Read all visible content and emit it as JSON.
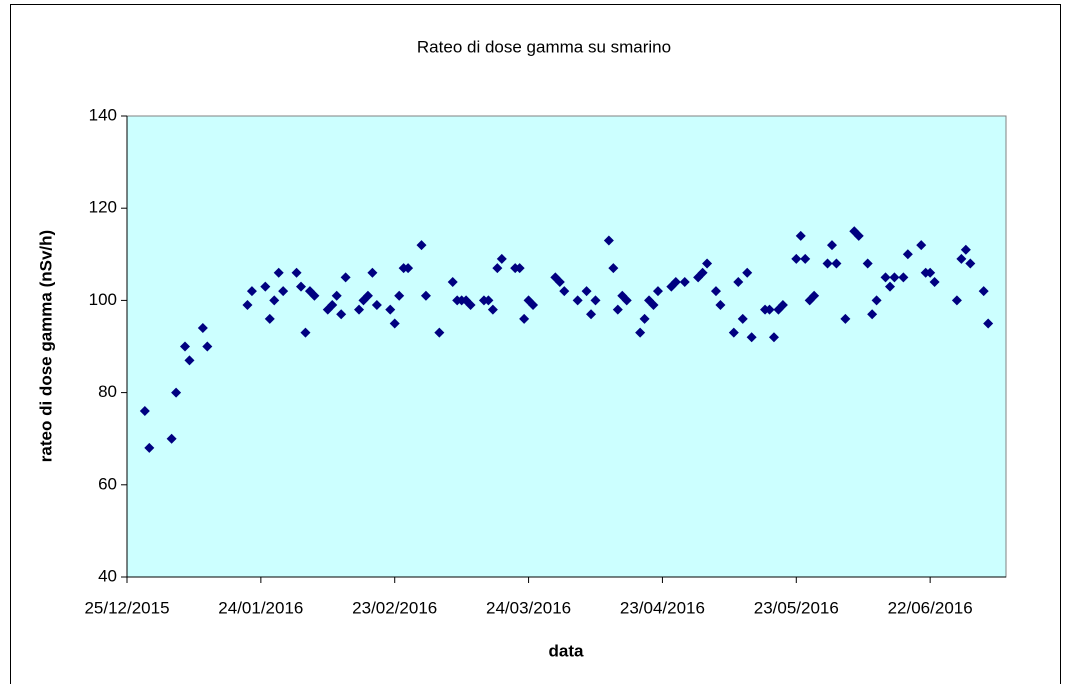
{
  "chart_data": {
    "type": "scatter",
    "title": "Rateo di dose gamma su smarino",
    "x_label": "data",
    "y_label": "rateo di dose gamma (nSv/h)",
    "color": "#000080",
    "background": "#ccffff",
    "x": [
      "2015-12-29",
      "2015-12-30",
      "2016-01-04",
      "2016-01-05",
      "2016-01-07",
      "2016-01-08",
      "2016-01-11",
      "2016-01-12",
      "2016-01-21",
      "2016-01-22",
      "2016-01-25",
      "2016-01-26",
      "2016-01-27",
      "2016-01-28",
      "2016-01-29",
      "2016-02-01",
      "2016-02-02",
      "2016-02-03",
      "2016-02-04",
      "2016-02-05",
      "2016-02-08",
      "2016-02-09",
      "2016-02-10",
      "2016-02-11",
      "2016-02-12",
      "2016-02-15",
      "2016-02-16",
      "2016-02-17",
      "2016-02-18",
      "2016-02-19",
      "2016-02-22",
      "2016-02-23",
      "2016-02-24",
      "2016-02-25",
      "2016-02-26",
      "2016-02-29",
      "2016-03-01",
      "2016-03-04",
      "2016-03-07",
      "2016-03-08",
      "2016-03-09",
      "2016-03-10",
      "2016-03-11",
      "2016-03-14",
      "2016-03-15",
      "2016-03-16",
      "2016-03-17",
      "2016-03-18",
      "2016-03-21",
      "2016-03-22",
      "2016-03-23",
      "2016-03-24",
      "2016-03-25",
      "2016-03-30",
      "2016-03-31",
      "2016-04-01",
      "2016-04-04",
      "2016-04-06",
      "2016-04-07",
      "2016-04-08",
      "2016-04-11",
      "2016-04-12",
      "2016-04-13",
      "2016-04-14",
      "2016-04-15",
      "2016-04-18",
      "2016-04-19",
      "2016-04-20",
      "2016-04-21",
      "2016-04-22",
      "2016-04-25",
      "2016-04-26",
      "2016-04-28",
      "2016-05-01",
      "2016-05-02",
      "2016-05-03",
      "2016-05-05",
      "2016-05-06",
      "2016-05-09",
      "2016-05-10",
      "2016-05-11",
      "2016-05-12",
      "2016-05-13",
      "2016-05-16",
      "2016-05-17",
      "2016-05-18",
      "2016-05-19",
      "2016-05-20",
      "2016-05-23",
      "2016-05-24",
      "2016-05-25",
      "2016-05-26",
      "2016-05-27",
      "2016-05-30",
      "2016-05-31",
      "2016-06-01",
      "2016-06-03",
      "2016-06-05",
      "2016-06-06",
      "2016-06-08",
      "2016-06-09",
      "2016-06-10",
      "2016-06-12",
      "2016-06-13",
      "2016-06-14",
      "2016-06-16",
      "2016-06-17",
      "2016-06-20",
      "2016-06-21",
      "2016-06-22",
      "2016-06-23",
      "2016-06-28",
      "2016-06-29",
      "2016-06-30",
      "2016-07-01",
      "2016-07-04",
      "2016-07-05"
    ],
    "values": [
      76,
      68,
      70,
      80,
      90,
      87,
      94,
      90,
      99,
      102,
      103,
      96,
      100,
      106,
      102,
      106,
      103,
      93,
      102,
      101,
      98,
      99,
      101,
      97,
      105,
      98,
      100,
      101,
      106,
      99,
      98,
      95,
      101,
      107,
      107,
      112,
      101,
      93,
      104,
      100,
      100,
      100,
      99,
      100,
      100,
      98,
      107,
      109,
      107,
      107,
      96,
      100,
      99,
      105,
      104,
      102,
      100,
      102,
      97,
      100,
      113,
      107,
      98,
      101,
      100,
      93,
      96,
      100,
      99,
      102,
      103,
      104,
      104,
      105,
      106,
      108,
      102,
      99,
      93,
      104,
      96,
      106,
      92,
      98,
      98,
      92,
      98,
      99,
      109,
      114,
      109,
      100,
      101,
      108,
      112,
      108,
      96,
      115,
      114,
      108,
      97,
      100,
      105,
      103,
      105,
      105,
      110,
      112,
      106,
      106,
      104,
      100,
      109,
      111,
      108,
      102,
      95
    ],
    "xlim": [
      "2015-12-25",
      "2016-07-09"
    ],
    "xticks": [
      {
        "value": "2015-12-25",
        "label": "25/12/2015"
      },
      {
        "value": "2016-01-24",
        "label": "24/01/2016"
      },
      {
        "value": "2016-02-23",
        "label": "23/02/2016"
      },
      {
        "value": "2016-03-24",
        "label": "24/03/2016"
      },
      {
        "value": "2016-04-23",
        "label": "23/04/2016"
      },
      {
        "value": "2016-05-23",
        "label": "23/05/2016"
      },
      {
        "value": "2016-06-22",
        "label": "22/06/2016"
      }
    ],
    "ylim": [
      40,
      140
    ],
    "yticks": [
      40,
      60,
      80,
      100,
      120,
      140
    ]
  }
}
